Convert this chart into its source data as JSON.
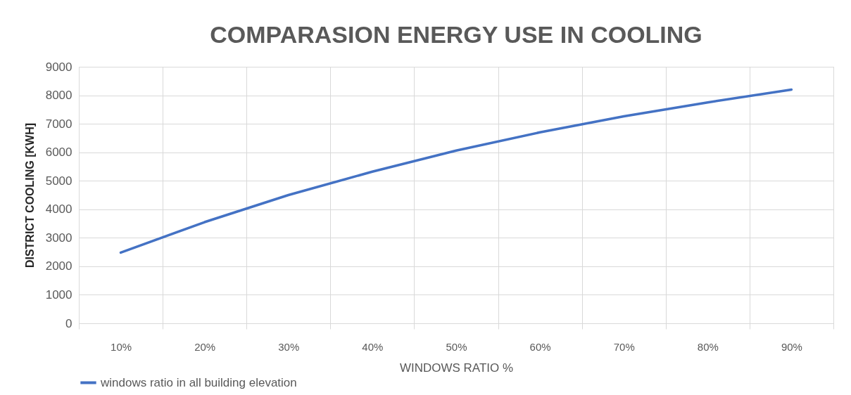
{
  "chart_data": {
    "type": "line",
    "title": "COMPARASION ENERGY USE IN COOLING",
    "xlabel": "WINDOWS RATIO %",
    "ylabel": "DISTRICT COOLING [KWH]",
    "categories": [
      "10%",
      "20%",
      "30%",
      "40%",
      "50%",
      "60%",
      "70%",
      "80%",
      "90%"
    ],
    "series": [
      {
        "name": "windows ratio in all building elevation",
        "color": "#4472c4",
        "values": [
          2480,
          3550,
          4500,
          5320,
          6060,
          6700,
          7260,
          7750,
          8200
        ]
      }
    ],
    "ylim": [
      0,
      9000
    ],
    "yticks": [
      0,
      1000,
      2000,
      3000,
      4000,
      5000,
      6000,
      7000,
      8000,
      9000
    ],
    "grid": true,
    "legend": "bottom",
    "marker": "none",
    "line_style": "solid"
  }
}
